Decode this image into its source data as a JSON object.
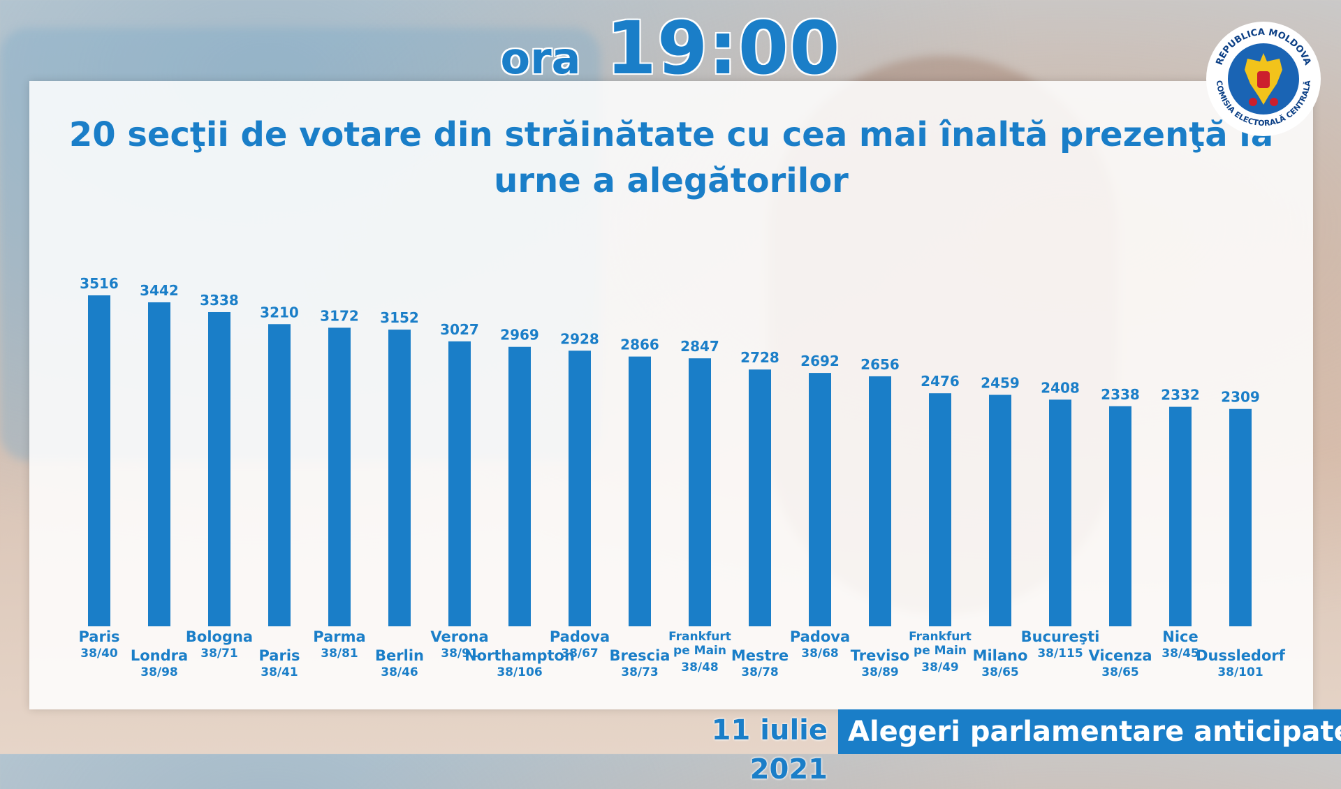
{
  "header": {
    "time_prefix": "ora",
    "time_value": "19:00"
  },
  "seal": {
    "text_top": "REPUBLICA MOLDOVA",
    "text_bottom": "COMISIA ELECTORALĂ CENTRALĂ"
  },
  "footer": {
    "date": "11 iulie 2021",
    "event": "Alegeri parlamentare anticipate"
  },
  "colors": {
    "accent": "#1a7ec8",
    "bar": "#1a7ec8",
    "footer_band": "#1a7ec8"
  },
  "chart_data": {
    "type": "bar",
    "title": "20 secţii de votare din străinătate cu cea mai înaltă prezenţă la urne a alegătorilor",
    "categories": [
      {
        "name": "Paris",
        "code": "38/40"
      },
      {
        "name": "Londra",
        "code": "38/98"
      },
      {
        "name": "Bologna",
        "code": "38/71"
      },
      {
        "name": "Paris",
        "code": "38/41"
      },
      {
        "name": "Parma",
        "code": "38/81"
      },
      {
        "name": "Berlin",
        "code": "38/46"
      },
      {
        "name": "Verona",
        "code": "38/91"
      },
      {
        "name": "Northampton",
        "code": "38/106"
      },
      {
        "name": "Padova",
        "code": "38/67"
      },
      {
        "name": "Brescia",
        "code": "38/73"
      },
      {
        "name": "Frankfurt pe Main",
        "code": "38/48"
      },
      {
        "name": "Mestre",
        "code": "38/78"
      },
      {
        "name": "Padova",
        "code": "38/68"
      },
      {
        "name": "Treviso",
        "code": "38/89"
      },
      {
        "name": "Frankfurt pe Main",
        "code": "38/49"
      },
      {
        "name": "Milano",
        "code": "38/65"
      },
      {
        "name": "Bucureşti",
        "code": "38/115"
      },
      {
        "name": "Vicenza",
        "code": "38/65"
      },
      {
        "name": "Nice",
        "code": "38/45"
      },
      {
        "name": "Dussledorf",
        "code": "38/101"
      }
    ],
    "values": [
      3516,
      3442,
      3338,
      3210,
      3172,
      3152,
      3027,
      2969,
      2928,
      2866,
      2847,
      2728,
      2692,
      2656,
      2476,
      2459,
      2408,
      2338,
      2332,
      2309
    ],
    "ylim": [
      0,
      3516
    ],
    "grid": false,
    "legend": "none"
  }
}
